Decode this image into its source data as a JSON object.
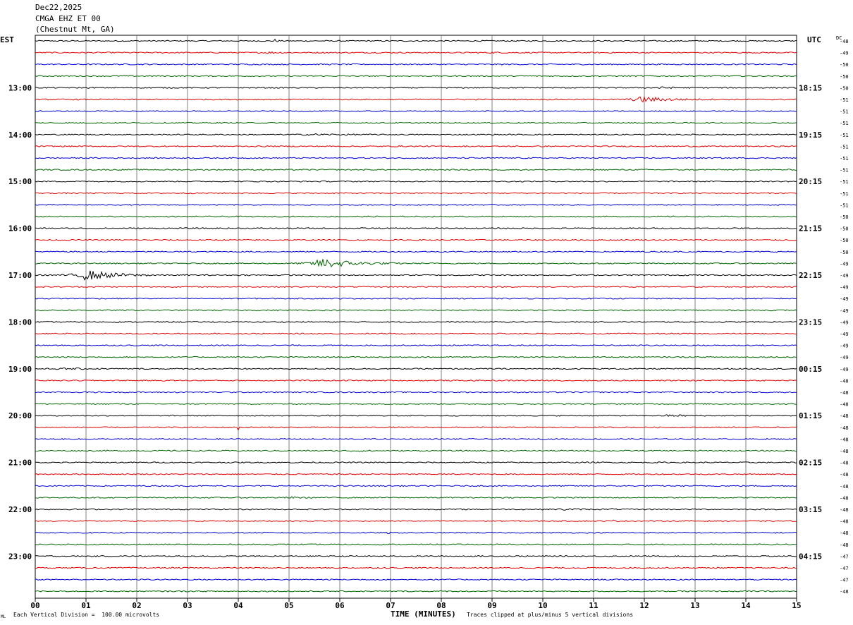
{
  "header": {
    "date": "Dec22,2025",
    "station": "CMGA EHZ ET 00",
    "location": "(Chestnut Mt, GA)"
  },
  "left_axis_label": "EST",
  "right_axis_label": "UTC",
  "dc_label": "DC",
  "x_axis_title": "TIME (MINUTES)",
  "footer": {
    "scale_note": "Each Vertical Division =  100.00 microvolts",
    "clip_note": "Traces clipped at plus/minus 5 vertical divisions",
    "logo_mark": "ML"
  },
  "colors": {
    "trace_cycle": [
      "#000000",
      "#e00000",
      "#0000d0",
      "#006400"
    ],
    "grid": "#808080",
    "frame": "#000000"
  },
  "chart_data": {
    "type": "line",
    "title": "CMGA EHZ ET 00",
    "xlabel": "TIME (MINUTES)",
    "ylabel": "",
    "xlim": [
      0,
      15
    ],
    "x_ticks": [
      "00",
      "01",
      "02",
      "03",
      "04",
      "05",
      "06",
      "07",
      "08",
      "09",
      "10",
      "11",
      "12",
      "13",
      "14",
      "15"
    ],
    "trace_count": 48,
    "trace_minutes": 15,
    "left_time_labels": [
      {
        "trace": 4,
        "text": "13:00"
      },
      {
        "trace": 8,
        "text": "14:00"
      },
      {
        "trace": 12,
        "text": "15:00"
      },
      {
        "trace": 16,
        "text": "16:00"
      },
      {
        "trace": 20,
        "text": "17:00"
      },
      {
        "trace": 24,
        "text": "18:00"
      },
      {
        "trace": 28,
        "text": "19:00"
      },
      {
        "trace": 32,
        "text": "20:00"
      },
      {
        "trace": 36,
        "text": "21:00"
      },
      {
        "trace": 40,
        "text": "22:00"
      },
      {
        "trace": 44,
        "text": "23:00"
      }
    ],
    "right_time_labels": [
      {
        "trace": 4,
        "text": "18:15"
      },
      {
        "trace": 8,
        "text": "19:15"
      },
      {
        "trace": 12,
        "text": "20:15"
      },
      {
        "trace": 16,
        "text": "21:15"
      },
      {
        "trace": 20,
        "text": "22:15"
      },
      {
        "trace": 24,
        "text": "23:15"
      },
      {
        "trace": 28,
        "text": "00:15"
      },
      {
        "trace": 32,
        "text": "01:15"
      },
      {
        "trace": 36,
        "text": "02:15"
      },
      {
        "trace": 40,
        "text": "03:15"
      },
      {
        "trace": 44,
        "text": "04:15"
      }
    ],
    "dc_offsets": [
      -48,
      -49,
      -50,
      -50,
      -50,
      -51,
      -51,
      -51,
      -51,
      -51,
      -51,
      -51,
      -51,
      -51,
      -51,
      -50,
      -50,
      -50,
      -50,
      -49,
      -49,
      -49,
      -49,
      -49,
      -49,
      -49,
      -49,
      -49,
      -49,
      -48,
      -48,
      -48,
      -48,
      -48,
      -48,
      -48,
      -48,
      -48,
      -48,
      -48,
      -48,
      -48,
      -48,
      -48,
      -47,
      -47,
      -47,
      -48
    ],
    "events": [
      {
        "trace": 0,
        "minute": 4.7,
        "amplitude": 1.5,
        "duration": 0.15
      },
      {
        "trace": 1,
        "minute": 4.6,
        "amplitude": 0.6,
        "duration": 0.6
      },
      {
        "trace": 1,
        "minute": 9.0,
        "amplitude": 0.4,
        "duration": 0.4
      },
      {
        "trace": 4,
        "minute": 12.3,
        "amplitude": 0.5,
        "duration": 1.0
      },
      {
        "trace": 5,
        "minute": 11.95,
        "amplitude": 2.2,
        "duration": 1.4
      },
      {
        "trace": 8,
        "minute": 5.5,
        "amplitude": 0.4,
        "duration": 1.5
      },
      {
        "trace": 19,
        "minute": 5.65,
        "amplitude": 4.0,
        "duration": 1.6
      },
      {
        "trace": 20,
        "minute": 1.0,
        "amplitude": 4.0,
        "duration": 1.5
      },
      {
        "trace": 28,
        "minute": 0.6,
        "amplitude": 0.4,
        "duration": 1.5
      },
      {
        "trace": 33,
        "minute": 4.0,
        "amplitude": 2.0,
        "duration": 0.05
      },
      {
        "trace": 32,
        "minute": 12.5,
        "amplitude": 0.6,
        "duration": 1.0
      },
      {
        "trace": 35,
        "minute": 6.3,
        "amplitude": 0.4,
        "duration": 0.8
      },
      {
        "trace": 39,
        "minute": 5.0,
        "amplitude": 0.6,
        "duration": 0.5
      },
      {
        "trace": 40,
        "minute": 10.4,
        "amplitude": 0.5,
        "duration": 0.8
      },
      {
        "trace": 40,
        "minute": 11.35,
        "amplitude": 1.8,
        "duration": 0.05
      },
      {
        "trace": 41,
        "minute": 11.35,
        "amplitude": 0.8,
        "duration": 0.2
      },
      {
        "trace": 42,
        "minute": 6.95,
        "amplitude": 1.5,
        "duration": 0.05
      }
    ]
  }
}
